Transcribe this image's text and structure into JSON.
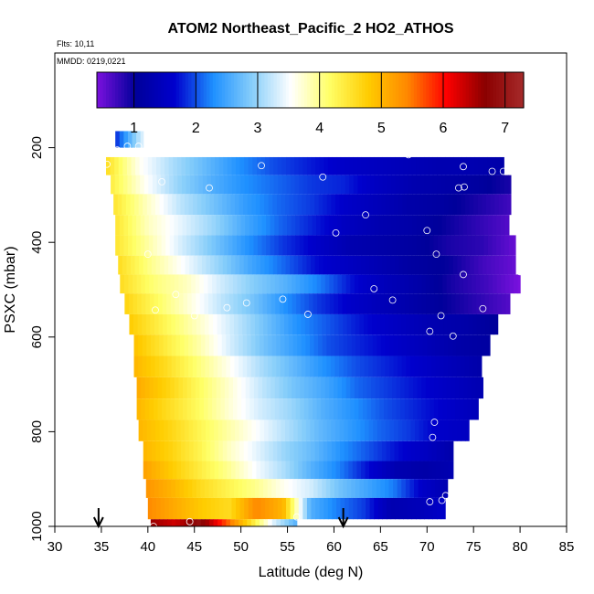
{
  "chart_data": {
    "type": "heatmap",
    "title": "ATOM2 Northeast_Pacific_2 HO2_ATHOS",
    "notes": [
      "Flts: 10,11",
      "MMDD: 0219,0221"
    ],
    "xlabel": "Latitude (deg N)",
    "ylabel": "PSXC (mbar)",
    "xlim": [
      30,
      85
    ],
    "ylim": [
      1000,
      0
    ],
    "x_ticks": [
      30,
      35,
      40,
      45,
      50,
      55,
      60,
      65,
      70,
      75,
      80,
      85
    ],
    "y_ticks": [
      200,
      400,
      600,
      800,
      1000
    ],
    "grid": false,
    "colorbar": {
      "position": "top",
      "range": [
        0.4,
        7.3
      ],
      "ticks": [
        1,
        2,
        3,
        4,
        5,
        6,
        7
      ],
      "colors": [
        "#7b11de",
        "#00009a",
        "#0000cd",
        "#1e90ff",
        "#87cefa",
        "#ffffff",
        "#ffff66",
        "#ffcc00",
        "#ff8800",
        "#ff0000",
        "#8b0000",
        "#a52a2a"
      ]
    },
    "layers": [
      {
        "p_top": 165,
        "p_bot": 200,
        "lat_start": 36.5,
        "lat_end": 39.5,
        "values": [
          1.8,
          2.6,
          3.4
        ]
      },
      {
        "p_top": 220,
        "p_bot": 258,
        "lat_start": 35.5,
        "lat_end": 78.3,
        "values": [
          4.6,
          3.6,
          3.1,
          2.7,
          2.3,
          2.0,
          1.8,
          1.6,
          1.5,
          1.4,
          1.3,
          1.3,
          1.2
        ]
      },
      {
        "p_top": 258,
        "p_bot": 298,
        "lat_start": 36.0,
        "lat_end": 79.0,
        "values": [
          4.4,
          3.6,
          3.0,
          2.6,
          2.3,
          2.1,
          1.9,
          1.8,
          1.5,
          1.3,
          1.2,
          1.1,
          0.9
        ]
      },
      {
        "p_top": 298,
        "p_bot": 342,
        "lat_start": 36.3,
        "lat_end": 79.0,
        "values": [
          4.5,
          3.8,
          3.2,
          2.8,
          2.4,
          2.1,
          1.9,
          1.6,
          1.4,
          1.2,
          1.1,
          0.9,
          0.7
        ]
      },
      {
        "p_top": 342,
        "p_bot": 385,
        "lat_start": 36.5,
        "lat_end": 78.8,
        "values": [
          4.5,
          3.8,
          3.4,
          3.0,
          2.5,
          2.1,
          1.8,
          1.5,
          1.3,
          1.2,
          1.0,
          0.8,
          0.6
        ]
      },
      {
        "p_top": 385,
        "p_bot": 428,
        "lat_start": 36.5,
        "lat_end": 79.5,
        "values": [
          4.5,
          3.9,
          3.3,
          2.8,
          2.3,
          1.9,
          1.6,
          1.3,
          1.2,
          1.1,
          0.9,
          0.8,
          0.5
        ]
      },
      {
        "p_top": 428,
        "p_bot": 468,
        "lat_start": 36.8,
        "lat_end": 79.5,
        "values": [
          4.6,
          4.0,
          3.5,
          3.0,
          2.5,
          2.1,
          1.7,
          1.5,
          1.3,
          1.1,
          1.0,
          0.7,
          0.5
        ]
      },
      {
        "p_top": 468,
        "p_bot": 508,
        "lat_start": 37.0,
        "lat_end": 80.0,
        "values": [
          4.6,
          4.1,
          3.8,
          3.3,
          2.9,
          2.6,
          2.2,
          1.7,
          1.4,
          1.2,
          0.9,
          0.7,
          0.4
        ]
      },
      {
        "p_top": 508,
        "p_bot": 552,
        "lat_start": 37.5,
        "lat_end": 79.0,
        "values": [
          4.7,
          4.2,
          3.7,
          3.2,
          2.8,
          2.3,
          1.9,
          1.6,
          1.4,
          1.2,
          1.0,
          0.8,
          0.6
        ]
      },
      {
        "p_top": 552,
        "p_bot": 595,
        "lat_start": 38.0,
        "lat_end": 77.8,
        "values": [
          4.8,
          4.3,
          3.8,
          3.3,
          2.8,
          2.3,
          2.0,
          1.7,
          1.5,
          1.3,
          1.2,
          1.0
        ]
      },
      {
        "p_top": 595,
        "p_bot": 640,
        "lat_start": 38.5,
        "lat_end": 76.8,
        "values": [
          4.9,
          4.4,
          3.9,
          3.3,
          2.8,
          2.4,
          2.0,
          1.8,
          1.6,
          1.4,
          1.2,
          1.1
        ]
      },
      {
        "p_top": 640,
        "p_bot": 685,
        "lat_start": 38.5,
        "lat_end": 76.0,
        "values": [
          5.0,
          4.6,
          4.1,
          3.6,
          3.1,
          2.7,
          2.3,
          2.0,
          1.8,
          1.6,
          1.4,
          1.2
        ]
      },
      {
        "p_top": 685,
        "p_bot": 730,
        "lat_start": 38.8,
        "lat_end": 76.0,
        "values": [
          5.1,
          4.7,
          4.2,
          3.7,
          3.2,
          2.8,
          2.5,
          2.1,
          1.9,
          1.7,
          1.5,
          1.3
        ]
      },
      {
        "p_top": 730,
        "p_bot": 775,
        "lat_start": 38.8,
        "lat_end": 75.5,
        "values": [
          5.0,
          4.6,
          4.2,
          3.7,
          3.3,
          3.0,
          2.6,
          2.3,
          2.0,
          1.8,
          1.6,
          1.4
        ]
      },
      {
        "p_top": 775,
        "p_bot": 820,
        "lat_start": 39.0,
        "lat_end": 74.5,
        "values": [
          5.0,
          4.7,
          4.3,
          3.9,
          3.5,
          3.1,
          2.7,
          2.4,
          2.1,
          1.9,
          1.6,
          1.5
        ]
      },
      {
        "p_top": 820,
        "p_bot": 862,
        "lat_start": 39.5,
        "lat_end": 73.0,
        "values": [
          5.0,
          4.7,
          4.3,
          3.8,
          3.4,
          3.0,
          2.7,
          2.3,
          2.0,
          1.7,
          1.5,
          1.2
        ]
      },
      {
        "p_top": 862,
        "p_bot": 900,
        "lat_start": 39.5,
        "lat_end": 72.8,
        "values": [
          5.2,
          4.8,
          4.4,
          4.0,
          3.5,
          3.1,
          2.6,
          2.2,
          1.7,
          1.3,
          1.2,
          1.3
        ]
      },
      {
        "p_top": 900,
        "p_bot": 940,
        "lat_start": 39.8,
        "lat_end": 72.3,
        "values": [
          5.3,
          5.0,
          4.6,
          4.3,
          4.0,
          3.6,
          3.3,
          2.8,
          2.5,
          2.2,
          1.6,
          1.3
        ]
      },
      {
        "p_top": 940,
        "p_bot": 985,
        "lat_start": 40.0,
        "lat_end": 72.0,
        "values": [
          5.4,
          5.1,
          4.8,
          4.6,
          5.4,
          5.0,
          2.6,
          2.2,
          1.9,
          1.3,
          1.4,
          1.6
        ]
      },
      {
        "p_top": 985,
        "p_bot": 1030,
        "lat_start": 40.3,
        "lat_end": 56.0,
        "values": [
          6.6,
          6.3,
          6.9,
          5.8,
          4.7,
          3.4,
          2.6
        ]
      }
    ],
    "points": [
      {
        "lat": 36.7,
        "p": 205
      },
      {
        "lat": 37.8,
        "p": 197
      },
      {
        "lat": 39.0,
        "p": 197
      },
      {
        "lat": 35.6,
        "p": 235
      },
      {
        "lat": 52.2,
        "p": 238
      },
      {
        "lat": 68.0,
        "p": 215
      },
      {
        "lat": 73.9,
        "p": 240
      },
      {
        "lat": 77.0,
        "p": 250
      },
      {
        "lat": 78.2,
        "p": 250
      },
      {
        "lat": 41.5,
        "p": 272
      },
      {
        "lat": 46.6,
        "p": 285
      },
      {
        "lat": 58.8,
        "p": 262
      },
      {
        "lat": 73.4,
        "p": 285
      },
      {
        "lat": 74.0,
        "p": 283
      },
      {
        "lat": 63.4,
        "p": 342
      },
      {
        "lat": 60.2,
        "p": 380
      },
      {
        "lat": 70.0,
        "p": 375
      },
      {
        "lat": 40.0,
        "p": 425
      },
      {
        "lat": 71.0,
        "p": 425
      },
      {
        "lat": 80.0,
        "p": 462
      },
      {
        "lat": 73.9,
        "p": 468
      },
      {
        "lat": 43.0,
        "p": 510
      },
      {
        "lat": 64.3,
        "p": 498
      },
      {
        "lat": 54.5,
        "p": 520
      },
      {
        "lat": 66.3,
        "p": 522
      },
      {
        "lat": 50.6,
        "p": 528
      },
      {
        "lat": 48.5,
        "p": 538
      },
      {
        "lat": 40.8,
        "p": 543
      },
      {
        "lat": 45.0,
        "p": 555
      },
      {
        "lat": 57.2,
        "p": 552
      },
      {
        "lat": 71.5,
        "p": 555
      },
      {
        "lat": 76.0,
        "p": 540
      },
      {
        "lat": 70.3,
        "p": 588
      },
      {
        "lat": 72.8,
        "p": 598
      },
      {
        "lat": 70.8,
        "p": 780
      },
      {
        "lat": 70.6,
        "p": 812
      },
      {
        "lat": 70.3,
        "p": 948
      },
      {
        "lat": 72.0,
        "p": 935
      },
      {
        "lat": 71.6,
        "p": 945
      },
      {
        "lat": 44.5,
        "p": 990
      },
      {
        "lat": 40.6,
        "p": 1000
      },
      {
        "lat": 56.0,
        "p": 980
      }
    ],
    "arrows": [
      34.7,
      61.0
    ]
  }
}
